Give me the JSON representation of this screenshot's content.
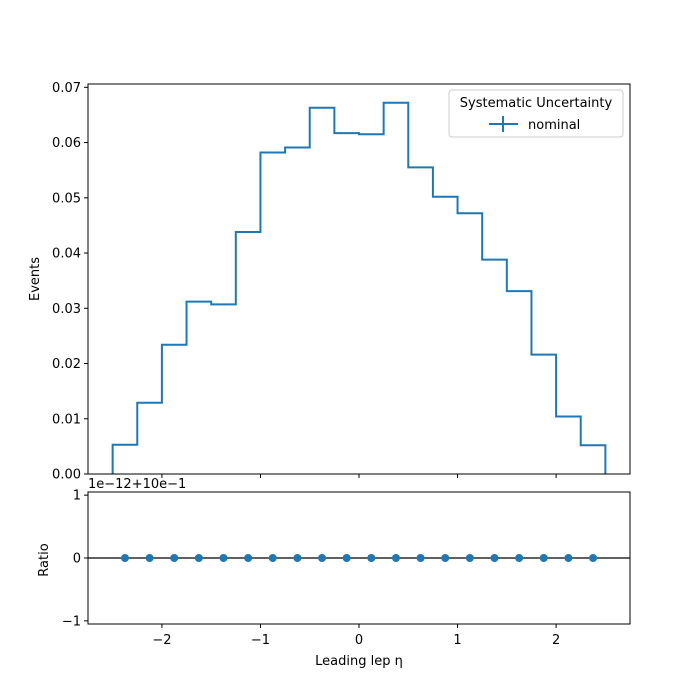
{
  "chart_data": [
    {
      "type": "step-histogram",
      "ylabel": "Events",
      "xlim": [
        -2.75,
        2.75
      ],
      "ylim": [
        0,
        0.0706
      ],
      "bin_edges": [
        -2.5,
        -2.25,
        -2.0,
        -1.75,
        -1.5,
        -1.25,
        -1.0,
        -0.75,
        -0.5,
        -0.25,
        0.0,
        0.25,
        0.5,
        0.75,
        1.0,
        1.25,
        1.5,
        1.75,
        2.0,
        2.25,
        2.5
      ],
      "series": [
        {
          "name": "nominal",
          "values": [
            0.0053,
            0.0129,
            0.0234,
            0.0312,
            0.0307,
            0.0438,
            0.0582,
            0.0591,
            0.0663,
            0.0617,
            0.0615,
            0.0672,
            0.0555,
            0.0502,
            0.0472,
            0.0388,
            0.0331,
            0.0216,
            0.0104,
            0.0052
          ]
        }
      ],
      "yticks": [
        0.0,
        0.01,
        0.02,
        0.03,
        0.04,
        0.05,
        0.06,
        0.07
      ],
      "ytick_labels": [
        "0.00",
        "0.01",
        "0.02",
        "0.03",
        "0.04",
        "0.05",
        "0.06",
        "0.07"
      ],
      "legend": {
        "title": "Systematic Uncertainty",
        "placement": "top-right",
        "entries": [
          "nominal"
        ]
      },
      "color": "#1f77b4"
    },
    {
      "type": "scatter",
      "xlabel": "Leading lep η",
      "ylabel": "Ratio",
      "offset_text": "1e−12+10e−1",
      "xlim": [
        -2.75,
        2.75
      ],
      "ylim": [
        -1.05,
        1.05
      ],
      "x": [
        -2.375,
        -2.125,
        -1.875,
        -1.625,
        -1.375,
        -1.125,
        -0.875,
        -0.625,
        -0.375,
        -0.125,
        0.125,
        0.375,
        0.625,
        0.875,
        1.125,
        1.375,
        1.625,
        1.875,
        2.125,
        2.375
      ],
      "y": [
        0,
        0,
        0,
        0,
        0,
        0,
        0,
        0,
        0,
        0,
        0,
        0,
        0,
        0,
        0,
        0,
        0,
        0,
        0,
        0
      ],
      "reference_line": 0,
      "yticks": [
        -1,
        0,
        1
      ],
      "ytick_labels": [
        "−1",
        "0",
        "1"
      ],
      "xticks": [
        -2,
        -1,
        0,
        1,
        2
      ],
      "xtick_labels": [
        "−2",
        "−1",
        "0",
        "1",
        "2"
      ],
      "color": "#1f77b4"
    }
  ]
}
